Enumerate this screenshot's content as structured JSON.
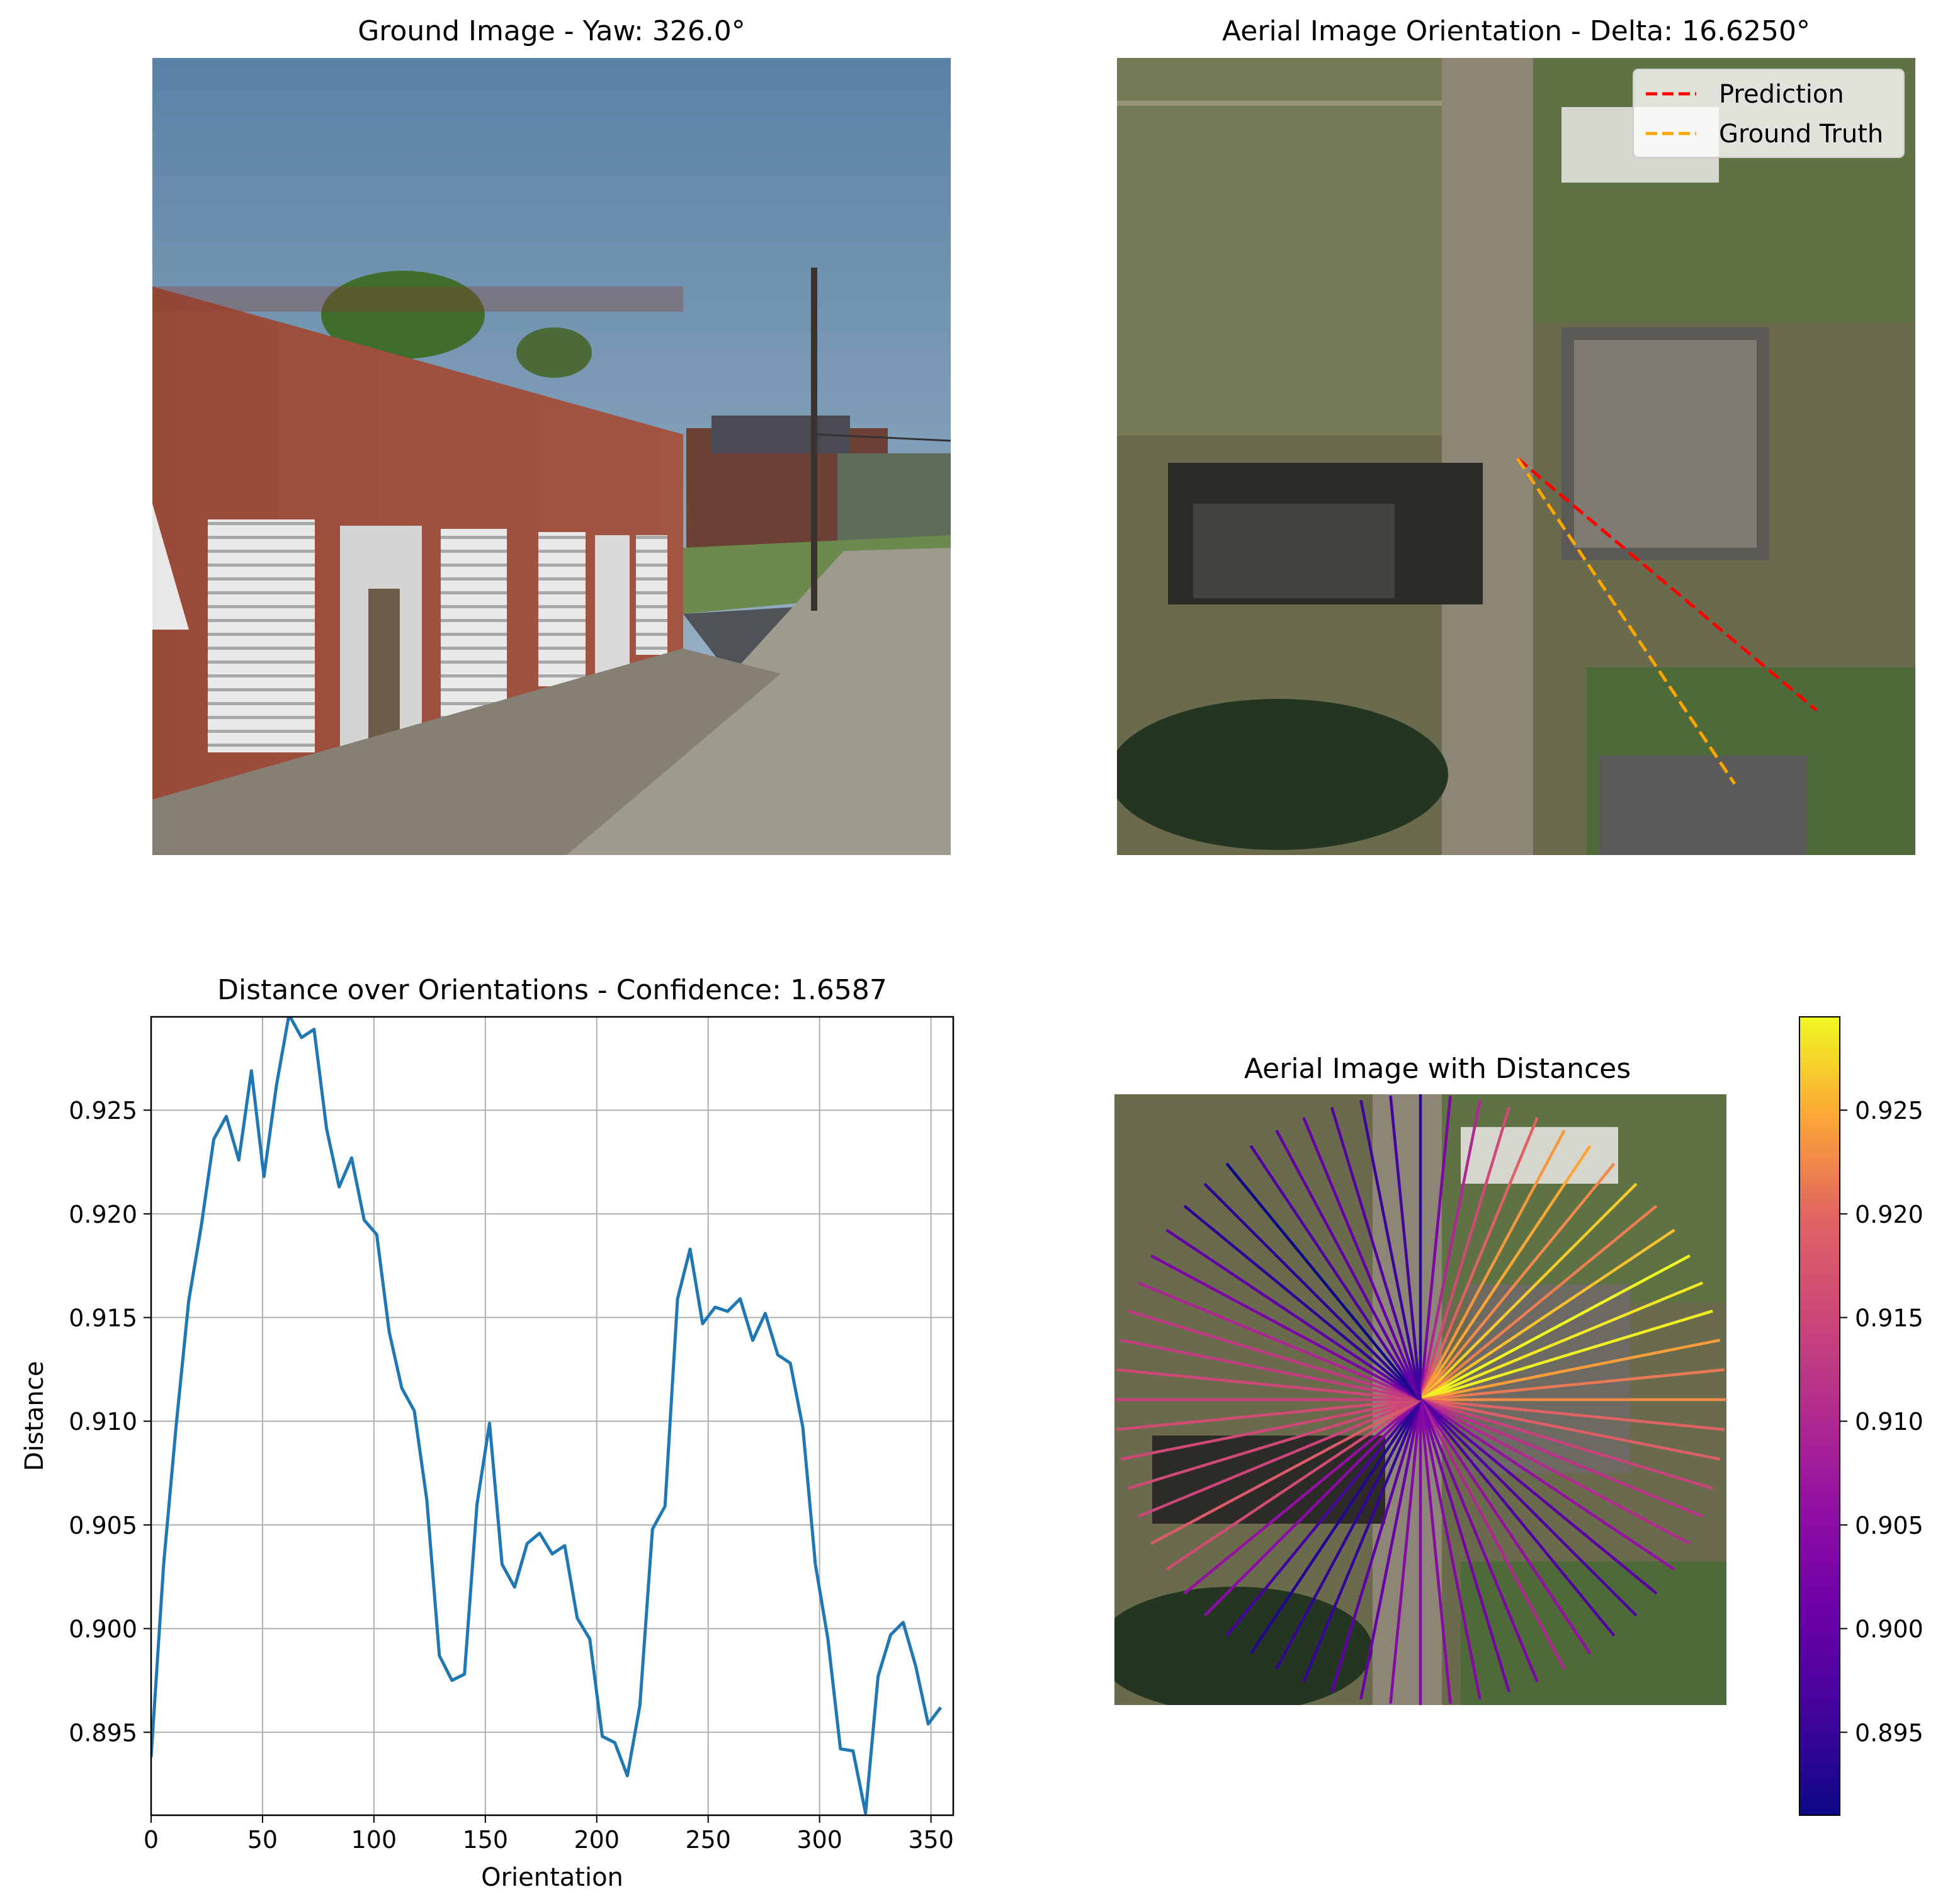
{
  "panels": {
    "ground": {
      "title": "Ground Image - Yaw: 326.0°"
    },
    "aerial": {
      "title": "Aerial Image Orientation - Delta: 16.6250°",
      "legend": [
        {
          "label": "Prediction",
          "color": "#ff0000",
          "style": "dashed"
        },
        {
          "label": "Ground Truth",
          "color": "#ffa500",
          "style": "dashed"
        }
      ]
    },
    "distance": {
      "title": "Distance over Orientations - Confidence: 1.6587"
    },
    "radial": {
      "title": "Aerial Image with Distances"
    }
  },
  "colors": {
    "line": "#1f77b4",
    "prediction": "#ff0000",
    "ground_truth": "#ffa500",
    "grid": "#b0b0b0",
    "colormap": "plasma"
  },
  "chart_data": [
    {
      "type": "line",
      "title": "Distance over Orientations - Confidence: 1.6587",
      "xlabel": "Orientation",
      "ylabel": "Distance",
      "xlim": [
        0,
        360
      ],
      "ylim": [
        0.891,
        0.9295
      ],
      "xticks": [
        0,
        50,
        100,
        150,
        200,
        250,
        300,
        350
      ],
      "yticks": [
        0.895,
        0.9,
        0.905,
        0.91,
        0.915,
        0.92,
        0.925
      ],
      "grid": true,
      "series": [
        {
          "x": [
            0,
            5.625,
            11.25,
            16.875,
            22.5,
            28.125,
            33.75,
            39.375,
            45,
            50.625,
            56.25,
            61.875,
            67.5,
            73.125,
            78.75,
            84.375,
            90,
            95.625,
            101.25,
            106.875,
            112.5,
            118.125,
            123.75,
            129.375,
            135,
            140.625,
            146.25,
            151.875,
            157.5,
            163.125,
            168.75,
            174.375,
            180,
            185.625,
            191.25,
            196.875,
            202.5,
            208.125,
            213.75,
            219.375,
            225,
            230.625,
            236.25,
            241.875,
            247.5,
            253.125,
            258.75,
            264.375,
            270,
            275.625,
            281.25,
            286.875,
            292.5,
            298.125,
            303.75,
            309.375,
            315,
            320.625,
            326.25,
            331.875,
            337.5,
            343.125,
            348.75,
            354.375
          ],
          "y": [
            0.8938,
            0.9031,
            0.9098,
            0.9158,
            0.9194,
            0.9236,
            0.9247,
            0.9226,
            0.9269,
            0.9218,
            0.9262,
            0.9296,
            0.9285,
            0.9289,
            0.9241,
            0.9213,
            0.9227,
            0.9197,
            0.919,
            0.9143,
            0.9116,
            0.9105,
            0.9062,
            0.8987,
            0.8975,
            0.8978,
            0.906,
            0.9099,
            0.9031,
            0.902,
            0.9041,
            0.9046,
            0.9036,
            0.904,
            0.9005,
            0.8995,
            0.8948,
            0.8945,
            0.8929,
            0.8963,
            0.9048,
            0.9059,
            0.9159,
            0.9183,
            0.9147,
            0.9155,
            0.9153,
            0.9159,
            0.9139,
            0.9152,
            0.9132,
            0.9128,
            0.9097,
            0.9031,
            0.8995,
            0.8942,
            0.8941,
            0.8911,
            0.8977,
            0.8997,
            0.9003,
            0.8982,
            0.8954,
            0.8962
          ]
        }
      ]
    },
    {
      "type": "heatmap",
      "title": "Aerial Image with Distances",
      "colorbar_range": [
        0.891,
        0.9295
      ],
      "colorbar_ticks": [
        0.895,
        0.9,
        0.905,
        0.91,
        0.915,
        0.92,
        0.925
      ]
    }
  ]
}
